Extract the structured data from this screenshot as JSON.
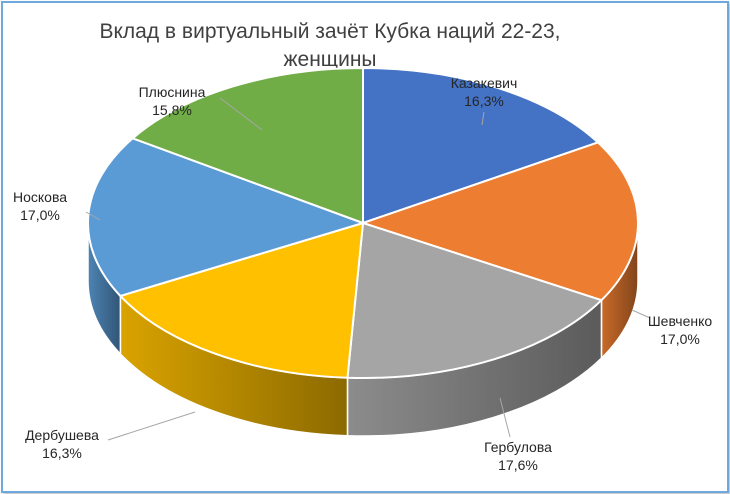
{
  "chart_data": {
    "type": "pie",
    "title_line1": "Вклад в виртуальный зачёт Кубка наций 22-23,",
    "title_line2": "женщины",
    "slices": [
      {
        "name": "Казакевич",
        "value": 16.3,
        "label": "16,3%",
        "color": "#4472c4"
      },
      {
        "name": "Шевченко",
        "value": 17.0,
        "label": "17,0%",
        "color": "#ed7d31"
      },
      {
        "name": "Гербулова",
        "value": 17.6,
        "label": "17,6%",
        "color": "#a5a5a5"
      },
      {
        "name": "Дербушева",
        "value": 16.3,
        "label": "16,3%",
        "color": "#ffc000"
      },
      {
        "name": "Носкова",
        "value": 17.0,
        "label": "17,0%",
        "color": "#5b9bd5"
      },
      {
        "name": "Плюснина",
        "value": 15.8,
        "label": "15,8%",
        "color": "#70ad47"
      }
    ]
  }
}
